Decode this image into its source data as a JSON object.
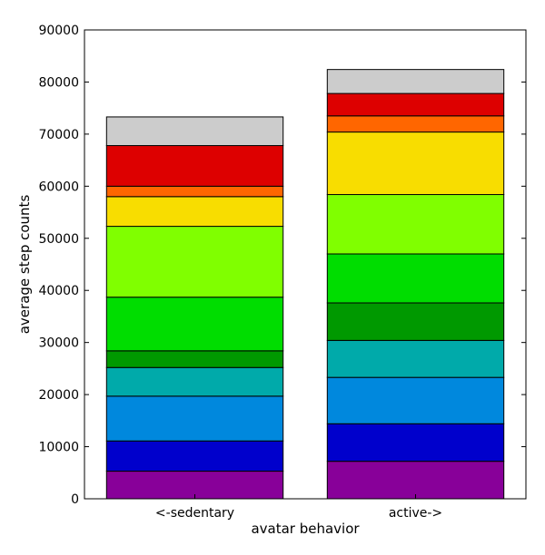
{
  "chart_data": {
    "type": "bar",
    "stacked": true,
    "title": "",
    "xlabel": "avatar behavior",
    "ylabel": "average step counts",
    "ylim": [
      0,
      90000
    ],
    "yticks": [
      0,
      10000,
      20000,
      30000,
      40000,
      50000,
      60000,
      70000,
      80000,
      90000
    ],
    "grid": false,
    "categories": [
      "<-sedentary",
      "active->"
    ],
    "series": [
      {
        "color": "#880099",
        "values": [
          5300,
          7200
        ]
      },
      {
        "color": "#0000cc",
        "values": [
          5800,
          7200
        ]
      },
      {
        "color": "#0088dd",
        "values": [
          8600,
          8900
        ]
      },
      {
        "color": "#00aaaa",
        "values": [
          5500,
          7100
        ]
      },
      {
        "color": "#009900",
        "values": [
          3200,
          7200
        ]
      },
      {
        "color": "#00dd00",
        "values": [
          10300,
          9400
        ]
      },
      {
        "color": "#80ff00",
        "values": [
          13600,
          11400
        ]
      },
      {
        "color": "#f8dd00",
        "values": [
          5700,
          12000
        ]
      },
      {
        "color": "#ff6600",
        "values": [
          2000,
          3100
        ]
      },
      {
        "color": "#dd0000",
        "values": [
          7800,
          4300
        ]
      },
      {
        "color": "#cccccc",
        "values": [
          5500,
          4600
        ]
      }
    ]
  }
}
